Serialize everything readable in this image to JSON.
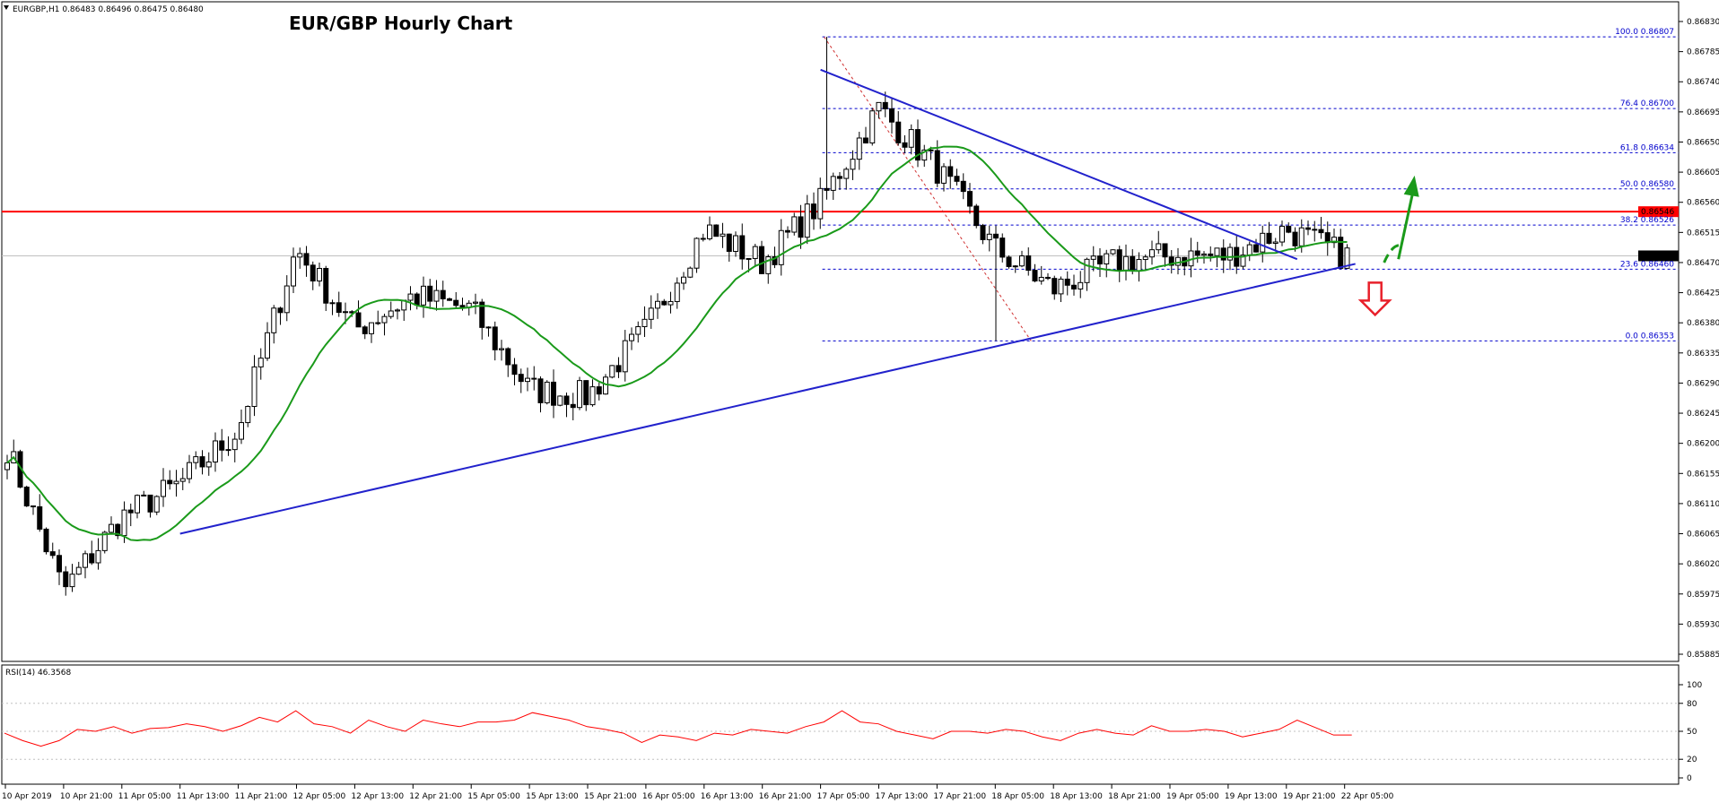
{
  "header": {
    "symbol_line": "EURGBP,H1  0.86483 0.86496 0.86475 0.86480",
    "title": "EUR/GBP Hourly Chart"
  },
  "rsi_label": "RSI(14) 46.3568",
  "price_axis_ticks": [
    "0.86830",
    "0.86785",
    "0.86740",
    "0.86695",
    "0.86650",
    "0.86605",
    "0.86560",
    "0.86515",
    "0.86470",
    "0.86425",
    "0.86380",
    "0.86335",
    "0.86290",
    "0.86245",
    "0.86200",
    "0.86155",
    "0.86110",
    "0.86065",
    "0.86020",
    "0.85975",
    "0.85930",
    "0.85885"
  ],
  "rsi_axis_ticks": [
    "100",
    "80",
    "50",
    "20",
    "0"
  ],
  "time_axis_labels": [
    "10 Apr 2019",
    "10 Apr 21:00",
    "11 Apr 05:00",
    "11 Apr 13:00",
    "11 Apr 21:00",
    "12 Apr 05:00",
    "12 Apr 13:00",
    "12 Apr 21:00",
    "15 Apr 05:00",
    "15 Apr 13:00",
    "15 Apr 21:00",
    "16 Apr 05:00",
    "16 Apr 13:00",
    "16 Apr 21:00",
    "17 Apr 05:00",
    "17 Apr 13:00",
    "17 Apr 21:00",
    "18 Apr 05:00",
    "18 Apr 13:00",
    "18 Apr 21:00",
    "19 Apr 05:00",
    "19 Apr 13:00",
    "19 Apr 21:00",
    "22 Apr 05:00"
  ],
  "fib_levels": [
    {
      "label": "100.0 0.86807",
      "price": 0.86807
    },
    {
      "label": "76.4 0.86700",
      "price": 0.867
    },
    {
      "label": "61.8 0.86634",
      "price": 0.86634
    },
    {
      "label": "50.0 0.86580",
      "price": 0.8658
    },
    {
      "label": "38.2 0.86526",
      "price": 0.86526
    },
    {
      "label": "23.6 0.86460",
      "price": 0.8646
    },
    {
      "label": "0.0 0.86353",
      "price": 0.86353
    }
  ],
  "price_tags": {
    "resistance": {
      "label": "0.86546",
      "price": 0.86546,
      "color": "#ff0000"
    },
    "current": {
      "label": "0.86480",
      "price": 0.8648,
      "color": "#000000"
    }
  },
  "colors": {
    "bull_candle": "#ffffff",
    "bear_candle": "#000000",
    "moving_average": "#1a9a1a",
    "trendline": "#2222cc",
    "fib": "#0000cc",
    "resistance": "#ff0000",
    "rsi": "#ff0000",
    "arrow_up": "#1a9a1a",
    "arrow_down": "#e8202a"
  },
  "chart_data": [
    {
      "type": "candlestick",
      "title": "EUR/GBP Hourly Chart",
      "symbol": "EURGBP",
      "timeframe": "H1",
      "ylim": [
        0.85885,
        0.8683
      ],
      "anchors": [
        {
          "time": "10 Apr 2019",
          "price": 0.862
        },
        {
          "time": "10 Apr 21:00",
          "price": 0.8598
        },
        {
          "time": "11 Apr 05:00",
          "price": 0.8609
        },
        {
          "time": "11 Apr 13:00",
          "price": 0.8614
        },
        {
          "time": "11 Apr 21:00",
          "price": 0.8622
        },
        {
          "time": "12 Apr 05:00",
          "price": 0.8649
        },
        {
          "time": "12 Apr 13:00",
          "price": 0.8637
        },
        {
          "time": "12 Apr 21:00",
          "price": 0.8642
        },
        {
          "time": "15 Apr 05:00",
          "price": 0.864
        },
        {
          "time": "15 Apr 13:00",
          "price": 0.8628
        },
        {
          "time": "15 Apr 21:00",
          "price": 0.8627
        },
        {
          "time": "16 Apr 05:00",
          "price": 0.8637
        },
        {
          "time": "16 Apr 13:00",
          "price": 0.8652
        },
        {
          "time": "16 Apr 21:00",
          "price": 0.8647
        },
        {
          "time": "17 Apr 05:00",
          "price": 0.8656
        },
        {
          "time": "17 Apr 13:00",
          "price": 0.867
        },
        {
          "time": "17 Apr 21:00",
          "price": 0.8661
        },
        {
          "time": "18 Apr 05:00",
          "price": 0.8649
        },
        {
          "time": "18 Apr 13:00",
          "price": 0.8643
        },
        {
          "time": "18 Apr 21:00",
          "price": 0.8647
        },
        {
          "time": "19 Apr 05:00",
          "price": 0.8648
        },
        {
          "time": "19 Apr 13:00",
          "price": 0.8648
        },
        {
          "time": "19 Apr 21:00",
          "price": 0.8652
        },
        {
          "time": "22 Apr 05:00",
          "price": 0.8648
        }
      ],
      "extremes": {
        "high": {
          "time": "17 Apr 05:00",
          "price": 0.86807
        },
        "low": {
          "time": "18 Apr 05:00",
          "price": 0.86353
        }
      },
      "moving_average": {
        "name": "MA",
        "color": "#1a9a1a"
      },
      "trendlines": [
        {
          "name": "support",
          "from": {
            "time": "11 Apr 13:00",
            "price": 0.86065
          },
          "to": {
            "time": "22 Apr 05:00",
            "price": 0.86468
          }
        },
        {
          "name": "resistance",
          "from": {
            "time": "17 Apr 05:00",
            "price": 0.86758
          },
          "to": {
            "time": "19 Apr 21:00",
            "price": 0.86475
          }
        }
      ],
      "horizontal_line": {
        "price": 0.86546
      }
    },
    {
      "type": "line",
      "title": "RSI(14) 46.3568",
      "series": [
        {
          "name": "RSI(14)",
          "values": [
            48,
            40,
            34,
            40,
            52,
            50,
            55,
            48,
            53,
            54,
            58,
            55,
            50,
            56,
            65,
            60,
            72,
            58,
            55,
            48,
            62,
            55,
            50,
            62,
            58,
            55,
            60,
            60,
            62,
            70,
            66,
            62,
            55,
            52,
            48,
            38,
            46,
            44,
            40,
            48,
            46,
            52,
            50,
            48,
            55,
            60,
            72,
            60,
            58,
            50,
            46,
            42,
            50,
            50,
            48,
            52,
            50,
            44,
            40,
            48,
            52,
            48,
            46,
            56,
            50,
            50,
            52,
            50,
            44,
            48,
            52,
            62,
            54,
            46,
            46
          ]
        }
      ],
      "ylim": [
        0,
        100
      ],
      "levels": [
        80,
        50,
        20
      ]
    }
  ]
}
